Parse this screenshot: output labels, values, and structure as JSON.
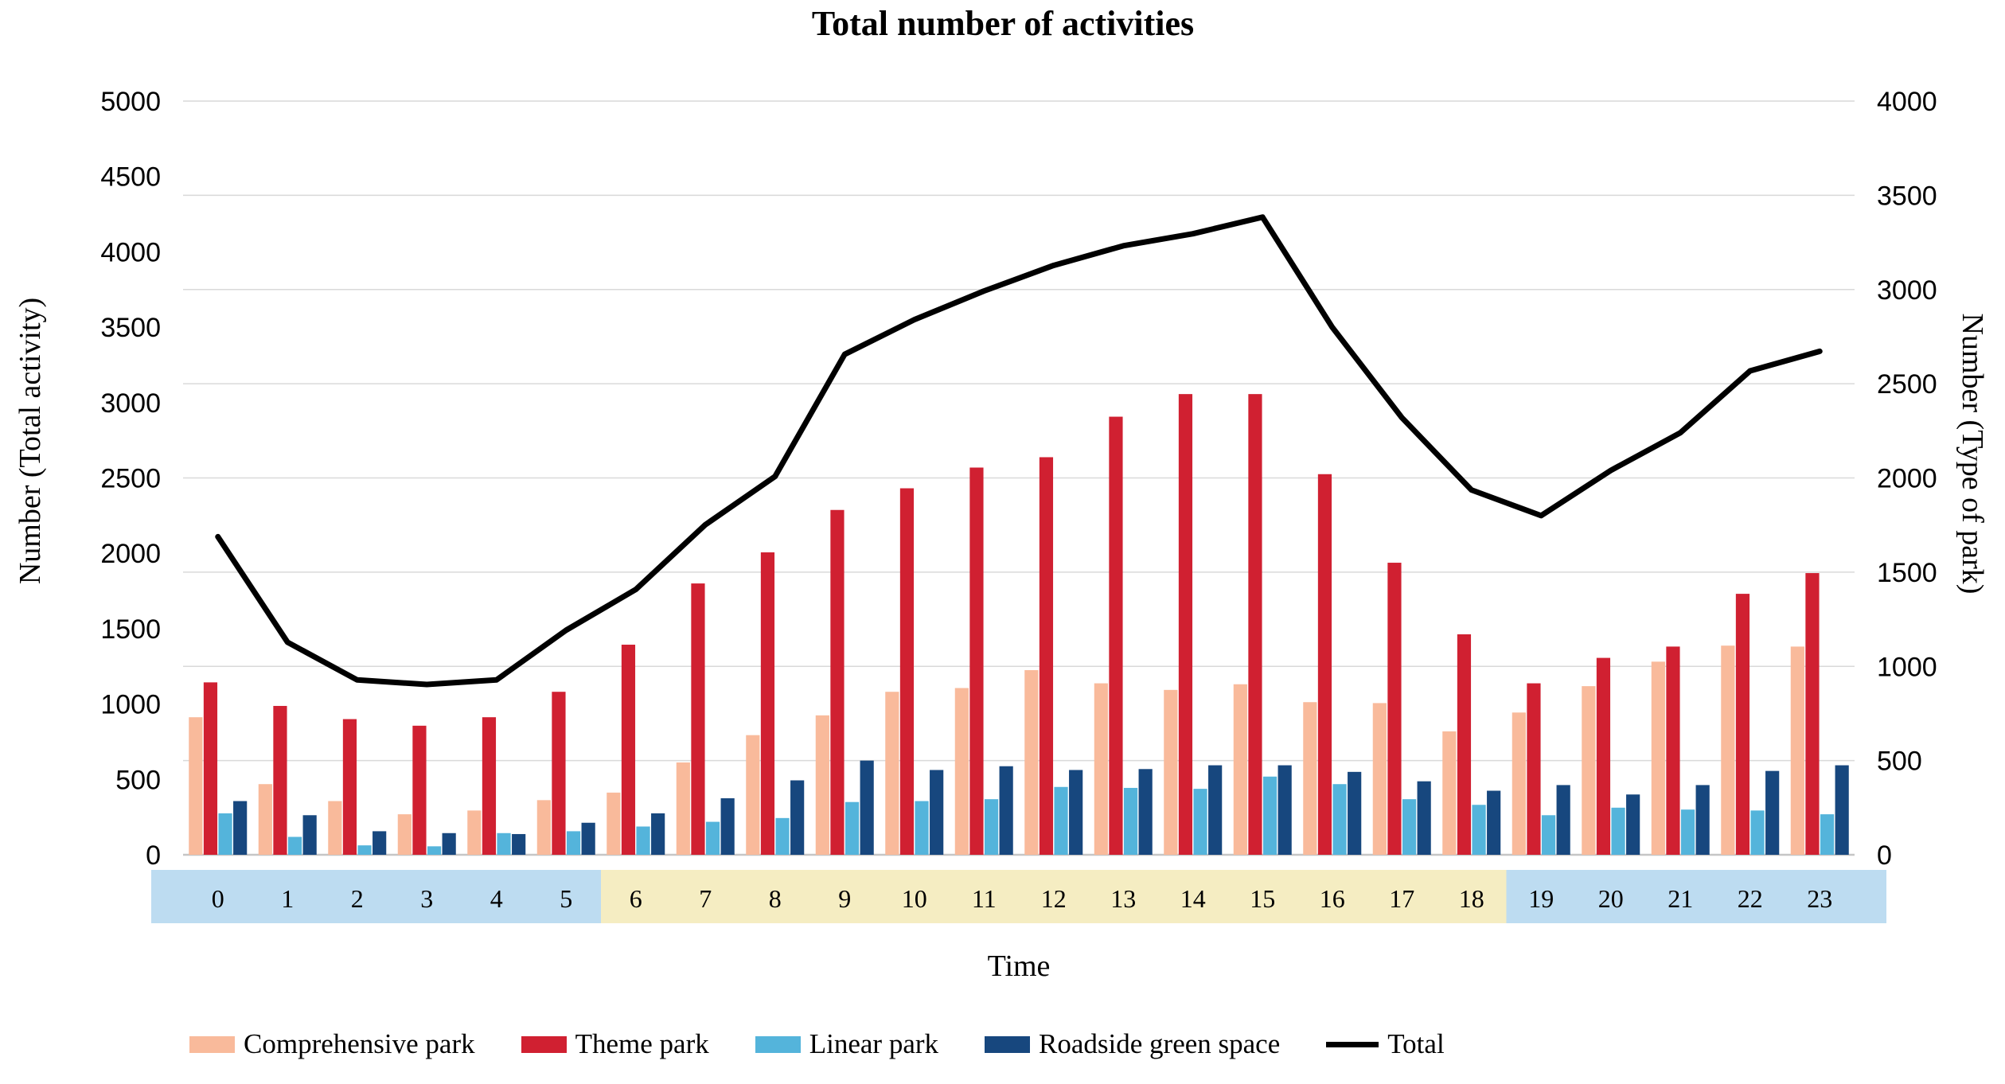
{
  "title": "Total number of activities",
  "y_left_axis": {
    "label": "Number (Total activity)",
    "ticks": [
      "5000",
      "4500",
      "4000",
      "3500",
      "3000",
      "2500",
      "2000",
      "1500",
      "1000",
      "500",
      "0"
    ],
    "min": 0,
    "max": 5000
  },
  "y_right_axis": {
    "label": "Number (Type of park)",
    "ticks": [
      "4000",
      "3500",
      "3000",
      "2500",
      "2000",
      "1500",
      "1000",
      "500",
      "0"
    ],
    "min": 0,
    "max": 4000
  },
  "x_axis": {
    "label": "Time",
    "ticks": [
      "0",
      "1",
      "2",
      "3",
      "4",
      "5",
      "6",
      "7",
      "8",
      "9",
      "10",
      "11",
      "12",
      "13",
      "14",
      "15",
      "16",
      "17",
      "18",
      "19",
      "20",
      "21",
      "22",
      "23"
    ],
    "night_band_color": "#BDDCF1",
    "day_band_color": "#F5EDC2",
    "day_hours_range": [
      6,
      18
    ]
  },
  "colors": {
    "comprehensive_park": "#F9BA9B",
    "theme_park": "#D02031",
    "linear_park": "#54B4DB",
    "roadside_green_space": "#17477E",
    "total_line": "#000000",
    "gridline": "#D9D9D9",
    "baseline": "#C6C6C6"
  },
  "legend": [
    {
      "label": "Comprehensive park",
      "color": "#F9BA9B",
      "kind": "bar"
    },
    {
      "label": "Theme park",
      "color": "#D02031",
      "kind": "bar"
    },
    {
      "label": "Linear park",
      "color": "#54B4DB",
      "kind": "bar"
    },
    {
      "label": "Roadside green space",
      "color": "#17477E",
      "kind": "bar"
    },
    {
      "label": "Total",
      "color": "#000000",
      "kind": "line"
    }
  ],
  "chart_data": {
    "type": "bar",
    "subtype": "grouped bars with overlay line, dual y-axes",
    "title": "Total number of activities",
    "xlabel": "Time",
    "ylabel_left": "Number (Total activity)",
    "ylabel_right": "Number (Type of park)",
    "ylim_left": [
      0,
      5000
    ],
    "ylim_right": [
      0,
      4000
    ],
    "grid": "horizontal gridlines at right-axis intervals of 500",
    "legend_position": "bottom",
    "categories": [
      0,
      1,
      2,
      3,
      4,
      5,
      6,
      7,
      8,
      9,
      10,
      11,
      12,
      13,
      14,
      15,
      16,
      17,
      18,
      19,
      20,
      21,
      22,
      23
    ],
    "series": [
      {
        "name": "Comprehensive park",
        "type": "bar",
        "axis": "right",
        "values": [
          730,
          375,
          285,
          215,
          235,
          290,
          330,
          490,
          635,
          740,
          865,
          885,
          980,
          910,
          875,
          905,
          810,
          805,
          655,
          755,
          895,
          1025,
          1110,
          1105
        ]
      },
      {
        "name": "Theme park",
        "type": "bar",
        "axis": "right",
        "values": [
          915,
          790,
          720,
          685,
          730,
          865,
          1115,
          1440,
          1605,
          1830,
          1945,
          2055,
          2110,
          2325,
          2445,
          2445,
          2020,
          1550,
          1170,
          910,
          1045,
          1105,
          1385,
          1495
        ]
      },
      {
        "name": "Linear park",
        "type": "bar",
        "axis": "right",
        "values": [
          220,
          95,
          50,
          45,
          115,
          125,
          150,
          175,
          195,
          280,
          285,
          295,
          360,
          355,
          350,
          415,
          375,
          295,
          265,
          210,
          250,
          240,
          235,
          215
        ]
      },
      {
        "name": "Roadside green space",
        "type": "bar",
        "axis": "right",
        "values": [
          285,
          210,
          125,
          115,
          110,
          170,
          220,
          300,
          395,
          500,
          450,
          470,
          450,
          455,
          475,
          475,
          440,
          390,
          340,
          370,
          320,
          370,
          445,
          475
        ]
      },
      {
        "name": "Total",
        "type": "line",
        "axis": "left",
        "values": [
          2110,
          1410,
          1160,
          1130,
          1160,
          1490,
          1760,
          2190,
          2510,
          3320,
          3550,
          3740,
          3910,
          4040,
          4120,
          4230,
          3500,
          2900,
          2420,
          2250,
          2550,
          2800,
          3210,
          3340
        ]
      }
    ]
  }
}
